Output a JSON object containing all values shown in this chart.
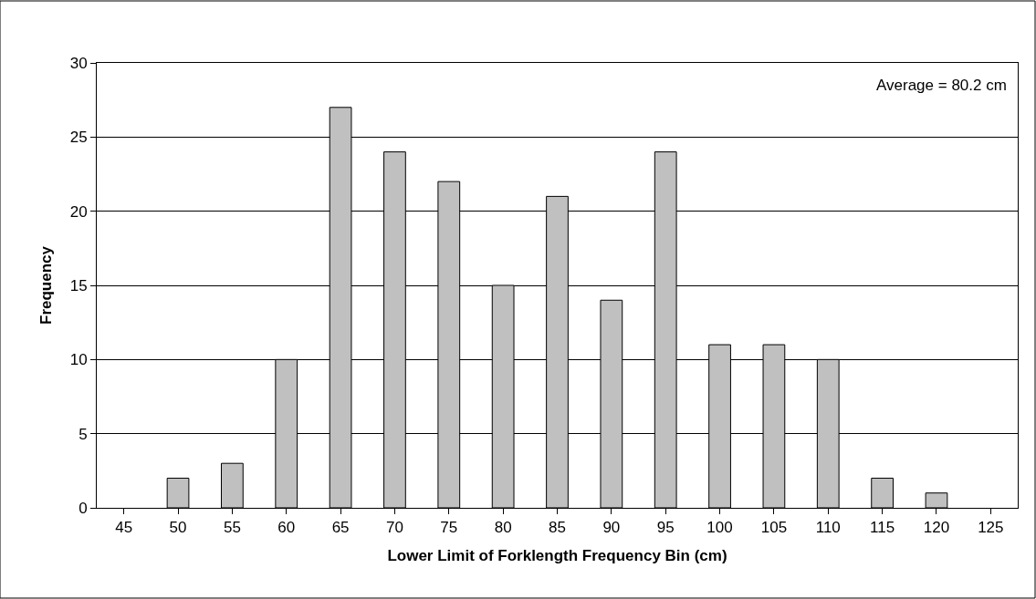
{
  "chart_data": {
    "type": "bar",
    "xlabel": "Lower Limit of Forklength Frequency Bin (cm)",
    "ylabel": "Frequency",
    "categories": [
      "45",
      "50",
      "55",
      "60",
      "65",
      "70",
      "75",
      "80",
      "85",
      "90",
      "95",
      "100",
      "105",
      "110",
      "115",
      "120",
      "125"
    ],
    "values": [
      0,
      2,
      3,
      10,
      27,
      24,
      22,
      15,
      21,
      14,
      24,
      11,
      11,
      10,
      2,
      1,
      0
    ],
    "color": "#c0c0c0",
    "ylim": [
      0,
      30
    ],
    "yticks": [
      0,
      5,
      10,
      15,
      20,
      25,
      30
    ],
    "grid": "y",
    "annotations": [
      "Average = 80.2 cm"
    ]
  }
}
